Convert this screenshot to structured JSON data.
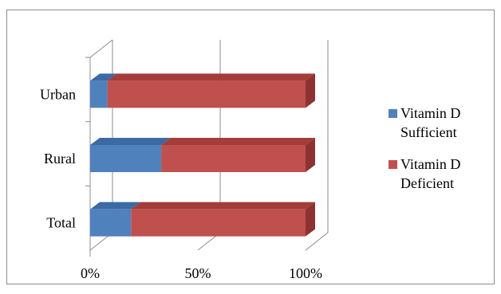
{
  "chart_data": {
    "type": "bar",
    "orientation": "horizontal",
    "stacked": "percent",
    "style": "3d",
    "categories": [
      "Total",
      "Rural",
      "Urban"
    ],
    "series": [
      {
        "name": "Vitamin D Sufficient",
        "values": [
          19,
          33,
          8
        ],
        "color": "#4f81bd"
      },
      {
        "name": "Vitamin D Deficient",
        "values": [
          81,
          67,
          92
        ],
        "color": "#c0504d"
      }
    ],
    "x_ticks": [
      "0%",
      "50%",
      "100%"
    ],
    "xlim": [
      0,
      100
    ],
    "legend_position": "right",
    "grid": true
  }
}
